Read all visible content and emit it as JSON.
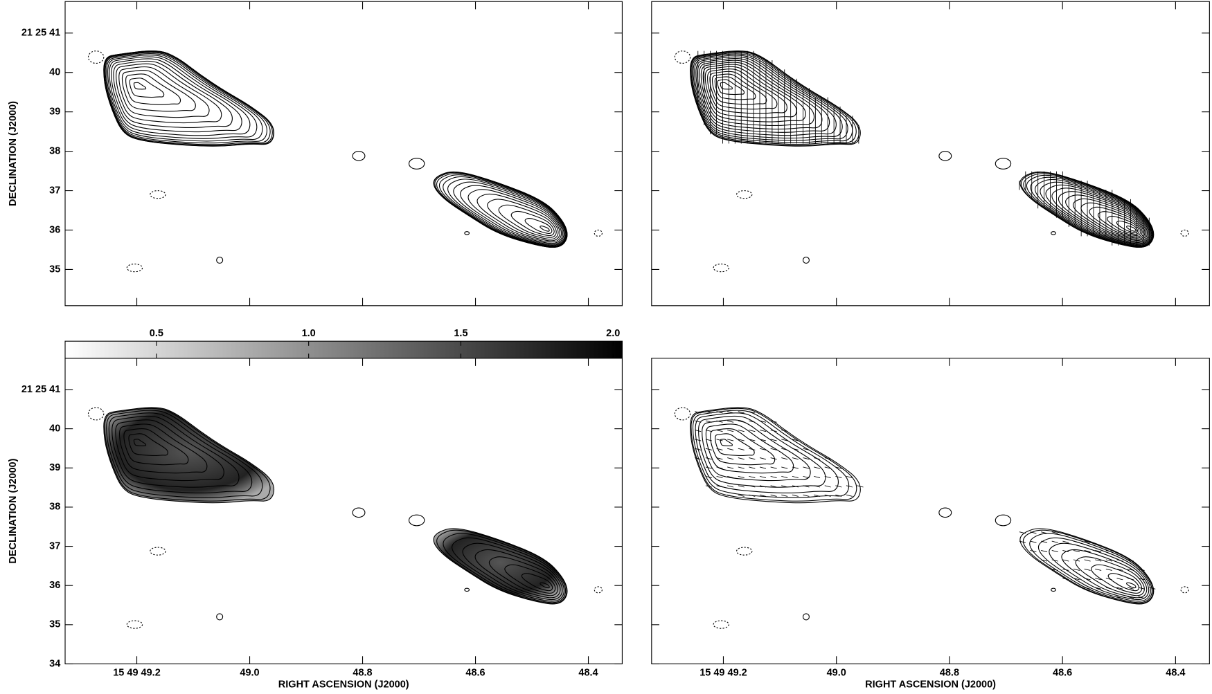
{
  "chart_data": [
    {
      "type": "contour",
      "xlim": [
        49.327,
        48.34
      ],
      "ylim": [
        34.08,
        41.8
      ],
      "xticks": [
        49.2,
        49.0,
        48.8,
        48.6,
        48.4
      ],
      "yticks": [
        {
          "value": 41,
          "label": "21 25 41"
        },
        40,
        39,
        38,
        37,
        36,
        35
      ],
      "ylabel": "DECLINATION (J2000)",
      "xtick_labels": false,
      "ytick_labels": true
    },
    {
      "type": "contour",
      "xlim": [
        49.327,
        48.34
      ],
      "ylim": [
        34.08,
        41.8
      ],
      "xticks": [
        49.2,
        49.0,
        48.8,
        48.6,
        48.4
      ],
      "yticks": [
        41,
        40,
        39,
        38,
        37,
        36,
        35
      ],
      "xtick_labels": false,
      "ytick_labels": false
    },
    {
      "type": "contour",
      "xlim": [
        49.327,
        48.34
      ],
      "ylim": [
        34,
        41.8
      ],
      "xticks": [
        {
          "value": 49.2,
          "label": "15 49 49.2"
        },
        {
          "value": 49.0,
          "label": "49.0"
        },
        48.8,
        48.6,
        48.4
      ],
      "yticks": [
        {
          "value": 41,
          "label": "21 25 41"
        },
        40,
        39,
        38,
        37,
        36,
        35,
        34
      ],
      "xlabel": "RIGHT ASCENSION (J2000)",
      "ylabel": "DECLINATION (J2000)",
      "xtick_labels": true,
      "ytick_labels": true,
      "colorbar": {
        "lim": [
          0.2,
          2.03
        ],
        "ticks": [
          0.5,
          {
            "value": 1,
            "label": "1.0"
          },
          1.5,
          {
            "value": 2,
            "label": "2.0"
          }
        ]
      }
    },
    {
      "type": "contour",
      "xlim": [
        49.327,
        48.34
      ],
      "ylim": [
        34,
        41.8
      ],
      "xticks": [
        {
          "value": 49.2,
          "label": "15 49 49.2"
        },
        {
          "value": 49.0,
          "label": "49.0"
        },
        48.8,
        48.6,
        48.4
      ],
      "yticks": [
        41,
        40,
        39,
        38,
        37,
        36,
        35,
        34
      ],
      "xlabel": "RIGHT ASCENSION (J2000)",
      "xtick_labels": true,
      "ytick_labels": false
    }
  ]
}
